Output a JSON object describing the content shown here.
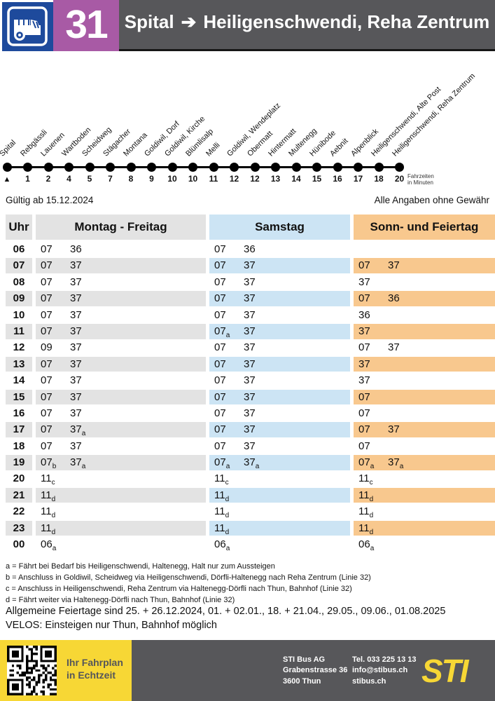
{
  "colors": {
    "line_blue": "#1e4a9c",
    "line_purple": "#a85aa5",
    "banner_gray": "#57575a",
    "samstag_blue": "#cce4f4",
    "sonntag_orange": "#f8c88e",
    "row_gray": "#e3e3e3",
    "footer_yellow": "#f7d735"
  },
  "header": {
    "line": "31",
    "from": "Spital",
    "arrow": "➔",
    "to": "Heiligenschwendi, Reha Zentrum"
  },
  "route": {
    "stops": [
      "Spital",
      "Rebgässli",
      "Lauenen",
      "Wartboden",
      "Scheidweg",
      "Stägacher",
      "Montana",
      "Goldiwil, Dorf",
      "Goldiwil, Kirche",
      "Blümlisalp",
      "Melli",
      "Goldiwil, Wendeplatz",
      "Obermatt",
      "Hintermatt",
      "Multenegg",
      "Hünibode",
      "Aebnit",
      "Alpenblick",
      "Heiligenschwendi, Alte Post",
      "Heiligenschwendi, Reha Zentrum"
    ],
    "minutes": [
      "▲",
      "1",
      "2",
      "4",
      "5",
      "7",
      "8",
      "9",
      "10",
      "10",
      "11",
      "12",
      "12",
      "13",
      "14",
      "15",
      "16",
      "17",
      "18",
      "20"
    ],
    "minutes_caption_1": "Fahrzeiten",
    "minutes_caption_2": "in Minuten"
  },
  "validity": {
    "valid_from": "Gültig ab 15.12.2024",
    "disclaimer": "Alle Angaben ohne Gewähr"
  },
  "timetable": {
    "columns": [
      "Uhr",
      "Montag - Freitag",
      "Samstag",
      "Sonn- und Feiertag"
    ],
    "rows": [
      {
        "hour": "06",
        "mf": [
          "07",
          "36"
        ],
        "sa": [
          "07",
          "36"
        ],
        "so": []
      },
      {
        "hour": "07",
        "mf": [
          "07",
          "37"
        ],
        "sa": [
          "07",
          "37"
        ],
        "so": [
          "07",
          "37"
        ]
      },
      {
        "hour": "08",
        "mf": [
          "07",
          "37"
        ],
        "sa": [
          "07",
          "37"
        ],
        "so": [
          "37"
        ]
      },
      {
        "hour": "09",
        "mf": [
          "07",
          "37"
        ],
        "sa": [
          "07",
          "37"
        ],
        "so": [
          "07",
          "36"
        ]
      },
      {
        "hour": "10",
        "mf": [
          "07",
          "37"
        ],
        "sa": [
          "07",
          "37"
        ],
        "so": [
          "36"
        ]
      },
      {
        "hour": "11",
        "mf": [
          "07",
          "37"
        ],
        "sa": [
          "07_a",
          "37"
        ],
        "so": [
          "37"
        ]
      },
      {
        "hour": "12",
        "mf": [
          "09",
          "37"
        ],
        "sa": [
          "07",
          "37"
        ],
        "so": [
          "07",
          "37"
        ]
      },
      {
        "hour": "13",
        "mf": [
          "07",
          "37"
        ],
        "sa": [
          "07",
          "37"
        ],
        "so": [
          "37"
        ]
      },
      {
        "hour": "14",
        "mf": [
          "07",
          "37"
        ],
        "sa": [
          "07",
          "37"
        ],
        "so": [
          "37"
        ]
      },
      {
        "hour": "15",
        "mf": [
          "07",
          "37"
        ],
        "sa": [
          "07",
          "37"
        ],
        "so": [
          "07"
        ]
      },
      {
        "hour": "16",
        "mf": [
          "07",
          "37"
        ],
        "sa": [
          "07",
          "37"
        ],
        "so": [
          "07"
        ]
      },
      {
        "hour": "17",
        "mf": [
          "07",
          "37_a"
        ],
        "sa": [
          "07",
          "37"
        ],
        "so": [
          "07",
          "37"
        ]
      },
      {
        "hour": "18",
        "mf": [
          "07",
          "37"
        ],
        "sa": [
          "07",
          "37"
        ],
        "so": [
          "07"
        ]
      },
      {
        "hour": "19",
        "mf": [
          "07_b",
          "37_a"
        ],
        "sa": [
          "07_a",
          "37_a"
        ],
        "so": [
          "07_a",
          "37_a"
        ]
      },
      {
        "hour": "20",
        "mf": [
          "11_c"
        ],
        "sa": [
          "11_c"
        ],
        "so": [
          "11_c"
        ]
      },
      {
        "hour": "21",
        "mf": [
          "11_d"
        ],
        "sa": [
          "11_d"
        ],
        "so": [
          "11_d"
        ]
      },
      {
        "hour": "22",
        "mf": [
          "11_d"
        ],
        "sa": [
          "11_d"
        ],
        "so": [
          "11_d"
        ]
      },
      {
        "hour": "23",
        "mf": [
          "11_d"
        ],
        "sa": [
          "11_d"
        ],
        "so": [
          "11_d"
        ]
      },
      {
        "hour": "00",
        "mf": [
          "06_a"
        ],
        "sa": [
          "06_a"
        ],
        "so": [
          "06_a"
        ]
      }
    ]
  },
  "footnotes": [
    "a = Fährt bei Bedarf bis Heiligenschwendi, Haltenegg, Halt nur zum Aussteigen",
    "b = Anschluss in Goldiwil, Scheidweg via Heiligenschwendi, Dörfli-Haltenegg nach Reha Zentrum (Linie 32)",
    "c = Anschluss in Heiligenschwendi, Reha Zentrum via Haltenegg-Dörfli nach Thun, Bahnhof (Linie 32)",
    "d = Fährt weiter via Haltenegg-Dörfli nach Thun, Bahnhof (Linie 32)"
  ],
  "notes": [
    "Allgemeine Feiertage sind 25. + 26.12.2024, 01. + 02.01., 18. + 21.04., 29.05., 09.06., 01.08.2025",
    "VELOS: Einsteigen nur Thun, Bahnhof möglich"
  ],
  "footer": {
    "qr_line1": "Ihr Fahrplan",
    "qr_line2": "in Echtzeit",
    "company": [
      "STI Bus AG",
      "Grabenstrasse 36",
      "3600 Thun"
    ],
    "contact": [
      "Tel. 033 225 13 13",
      "info@stibus.ch",
      "stibus.ch"
    ],
    "logo": "STI"
  }
}
